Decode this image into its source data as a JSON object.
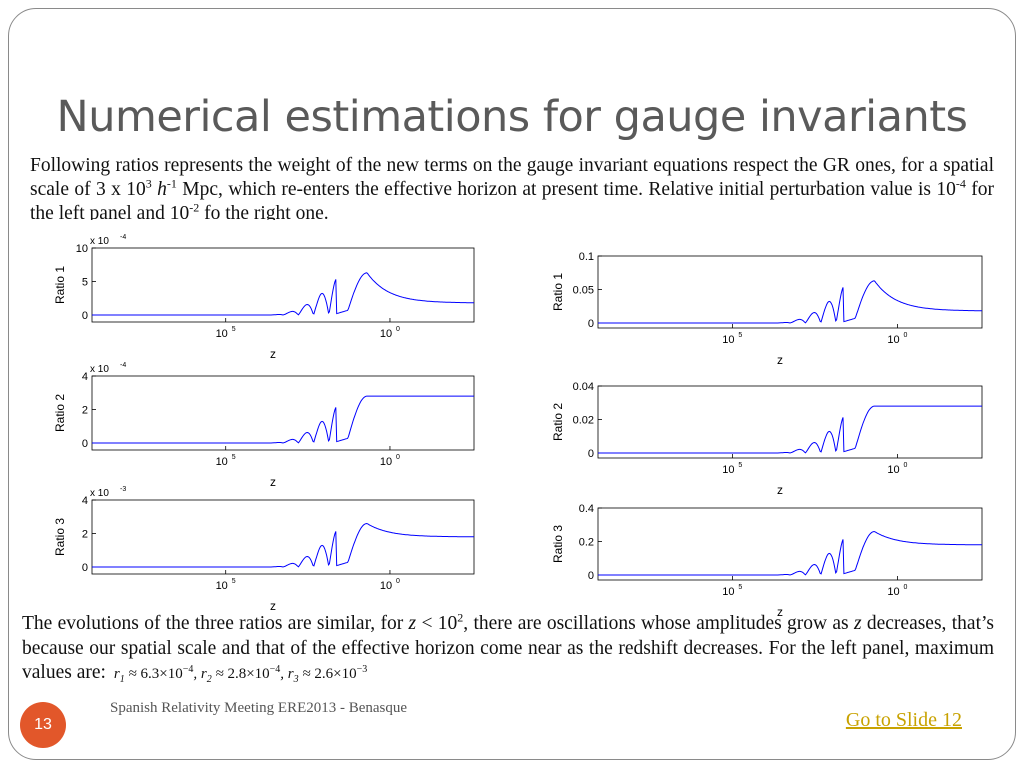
{
  "slide": {
    "title": "Numerical estimations for gauge invariants",
    "intro_1": "Following ratios represents the weight of the new terms on the gauge invariant equations respect the GR ones, for a spatial scale of 3 x 10",
    "intro_sup1": "3",
    "intro_h": "h",
    "intro_hsup": "-1",
    "intro_2": " Mpc, which re-enters the effective horizon at present time. Relative initial perturbation value is 10",
    "intro_sup2": "-4",
    "intro_3": " for the left panel and 10",
    "intro_sup3": "-2",
    "intro_4": " fo the right one.",
    "bottom_1": "The evolutions of the three ratios are similar, for ",
    "bottom_z": "z",
    "bottom_2": " < 10",
    "bottom_sup": "2",
    "bottom_3": ", there are oscillations whose amplitudes grow as ",
    "bottom_z2": "z",
    "bottom_4": " decreases, that’s because our spatial scale and that of the effective horizon come near as the redshift decreases. For the left panel, maximum values are:",
    "maxvals": {
      "r1": "r",
      "r1sub": "1",
      "r1val": "6.3×10",
      "r1exp": "−4",
      "r2": "r",
      "r2sub": "2",
      "r2val": "2.8×10",
      "r2exp": "−4",
      "r3": "r",
      "r3sub": "3",
      "r3val": "2.6×10",
      "r3exp": "−3"
    },
    "slide_number": "13",
    "footer": "Spanish Relativity Meeting ERE2013 - Benasque",
    "goto_link": "Go to Slide 12",
    "line_color": "#0000ff"
  },
  "chart_data": [
    {
      "type": "line",
      "ylabel": "Ratio 1",
      "xlabel": "z",
      "multiplier": "x 10",
      "multiplier_exp": "-4",
      "yticks": [
        "0",
        "5",
        "10"
      ],
      "xticks": [
        "10^5",
        "10^0"
      ],
      "ylim": [
        0,
        10
      ],
      "peak": 6.3,
      "final": 1.8,
      "panel": "left"
    },
    {
      "type": "line",
      "ylabel": "Ratio 2",
      "xlabel": "z",
      "multiplier": "x 10",
      "multiplier_exp": "-4",
      "yticks": [
        "0",
        "2",
        "4"
      ],
      "xticks": [
        "10^5",
        "10^0"
      ],
      "ylim": [
        0,
        4
      ],
      "peak": 2.8,
      "final": 2.8,
      "panel": "left"
    },
    {
      "type": "line",
      "ylabel": "Ratio 3",
      "xlabel": "z",
      "multiplier": "x 10",
      "multiplier_exp": "-3",
      "yticks": [
        "0",
        "2",
        "4"
      ],
      "xticks": [
        "10^5",
        "10^0"
      ],
      "ylim": [
        0,
        4
      ],
      "peak": 2.6,
      "final": 1.8,
      "panel": "left"
    },
    {
      "type": "line",
      "ylabel": "Ratio 1",
      "xlabel": "z",
      "multiplier": "",
      "multiplier_exp": "",
      "yticks": [
        "0",
        "0.05",
        "0.1"
      ],
      "xticks": [
        "10^5",
        "10^0"
      ],
      "ylim": [
        0,
        0.1
      ],
      "peak": 0.063,
      "final": 0.018,
      "panel": "right"
    },
    {
      "type": "line",
      "ylabel": "Ratio 2",
      "xlabel": "z",
      "multiplier": "",
      "multiplier_exp": "",
      "yticks": [
        "0",
        "0.02",
        "0.04"
      ],
      "xticks": [
        "10^5",
        "10^0"
      ],
      "ylim": [
        0,
        0.04
      ],
      "peak": 0.028,
      "final": 0.028,
      "panel": "right"
    },
    {
      "type": "line",
      "ylabel": "Ratio 3",
      "xlabel": "z",
      "multiplier": "",
      "multiplier_exp": "",
      "yticks": [
        "0",
        "0.2",
        "0.4"
      ],
      "xticks": [
        "10^5",
        "10^0"
      ],
      "ylim": [
        0,
        0.4
      ],
      "peak": 0.26,
      "final": 0.18,
      "panel": "right"
    }
  ]
}
